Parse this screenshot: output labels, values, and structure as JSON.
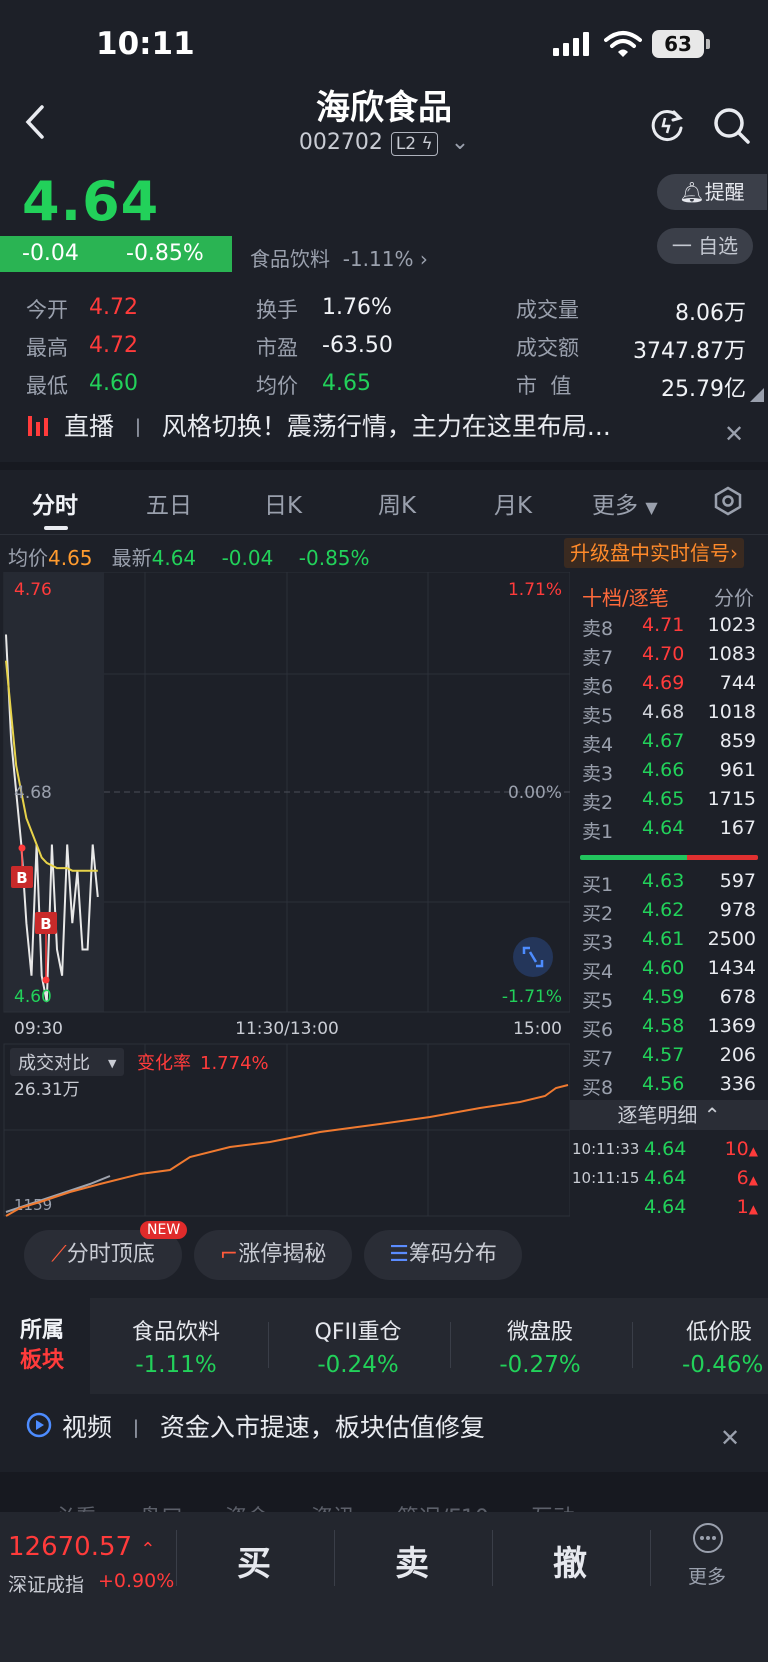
{
  "status": {
    "time": "10:11",
    "battery": "63"
  },
  "header": {
    "title": "海欣食品",
    "code": "002702",
    "badge": "L2"
  },
  "quote": {
    "price": "4.64",
    "change": "-0.04",
    "change_pct": "-0.85%",
    "sector": "食品饮料",
    "sector_pct": "-1.11%",
    "alert_label": "提醒",
    "watch_label": "一 自选"
  },
  "stats": {
    "open_label": "今开",
    "open": "4.72",
    "high_label": "最高",
    "high": "4.72",
    "low_label": "最低",
    "low": "4.60",
    "turnover_label": "换手",
    "turnover": "1.76%",
    "pe_label": "市盈",
    "pe": "-63.50",
    "avg_label": "均价",
    "avg": "4.65",
    "volume_label": "成交量",
    "volume": "8.06万",
    "amount_label": "成交额",
    "amount": "3747.87万",
    "mcap_label": "市  值",
    "mcap": "25.79亿"
  },
  "live": {
    "label": "直播",
    "sep": "丨",
    "text": "风格切换！震荡行情，主力在这里布局..."
  },
  "tabs": [
    "分时",
    "五日",
    "日K",
    "周K",
    "月K",
    "更多"
  ],
  "info": {
    "avg_label": "均价",
    "avg": "4.65",
    "last_label": "最新",
    "last": "4.64",
    "chg": "-0.04",
    "pct": "-0.85%",
    "upgrade": "升级盘中实时信号"
  },
  "chart_data": {
    "type": "line",
    "price_axis": {
      "top": "4.76",
      "mid": "4.68",
      "bottom": "4.60"
    },
    "pct_axis": {
      "top": "1.71%",
      "mid": "0.00%",
      "bottom": "-1.71%"
    },
    "time_labels": [
      "09:30",
      "11:30/13:00",
      "15:00"
    ],
    "ylim": [
      4.6,
      4.76
    ],
    "series": [
      {
        "values": [
          4.74,
          4.7,
          4.68,
          4.66,
          4.63,
          4.61,
          4.66,
          4.61,
          4.6,
          4.66,
          4.62,
          4.61,
          4.66,
          4.63,
          4.65,
          4.62,
          4.62,
          4.66,
          4.64
        ]
      },
      {
        "values": [
          4.73,
          4.71,
          4.69,
          4.68,
          4.67,
          4.665,
          4.66,
          4.655,
          4.653,
          4.652,
          4.651,
          4.651,
          4.651,
          4.65,
          4.65,
          4.65,
          4.65,
          4.65,
          4.65
        ]
      }
    ],
    "markers": [
      "B",
      "B"
    ],
    "volume": {
      "label": "成交对比",
      "rate_label": "变化率",
      "rate": "1.774%",
      "max": "26.31万",
      "min": "1159"
    }
  },
  "orderbook": {
    "title": "十档/逐笔",
    "mode": "分价",
    "asks": [
      {
        "label": "卖8",
        "price": "4.71",
        "vol": "1023",
        "color": "#ff3b3b"
      },
      {
        "label": "卖7",
        "price": "4.70",
        "vol": "1083",
        "color": "#ff3b3b"
      },
      {
        "label": "卖6",
        "price": "4.69",
        "vol": "744",
        "color": "#ff3b3b"
      },
      {
        "label": "卖5",
        "price": "4.68",
        "vol": "1018",
        "color": "#d0d3da"
      },
      {
        "label": "卖4",
        "price": "4.67",
        "vol": "859",
        "color": "#22d15a"
      },
      {
        "label": "卖3",
        "price": "4.66",
        "vol": "961",
        "color": "#22d15a"
      },
      {
        "label": "卖2",
        "price": "4.65",
        "vol": "1715",
        "color": "#22d15a"
      },
      {
        "label": "卖1",
        "price": "4.64",
        "vol": "167",
        "color": "#22d15a"
      }
    ],
    "bids": [
      {
        "label": "买1",
        "price": "4.63",
        "vol": "597",
        "color": "#22d15a"
      },
      {
        "label": "买2",
        "price": "4.62",
        "vol": "978",
        "color": "#22d15a"
      },
      {
        "label": "买3",
        "price": "4.61",
        "vol": "2500",
        "color": "#22d15a"
      },
      {
        "label": "买4",
        "price": "4.60",
        "vol": "1434",
        "color": "#22d15a"
      },
      {
        "label": "买5",
        "price": "4.59",
        "vol": "678",
        "color": "#22d15a"
      },
      {
        "label": "买6",
        "price": "4.58",
        "vol": "1369",
        "color": "#22d15a"
      },
      {
        "label": "买7",
        "price": "4.57",
        "vol": "206",
        "color": "#22d15a"
      },
      {
        "label": "买8",
        "price": "4.56",
        "vol": "336",
        "color": "#22d15a"
      }
    ],
    "detail_label": "逐笔明细",
    "ticks": [
      {
        "time": "10:11:33",
        "price": "4.64",
        "vol": "10"
      },
      {
        "time": "10:11:15",
        "price": "4.64",
        "vol": "6"
      },
      {
        "time": "",
        "price": "4.64",
        "vol": "1"
      }
    ]
  },
  "tools": {
    "t1": "分时顶底",
    "new": "NEW",
    "t2": "涨停揭秘",
    "t3": "筹码分布"
  },
  "sector_block": {
    "title1": "所属",
    "title2": "板块",
    "items": [
      {
        "name": "食品饮料",
        "pct": "-1.11%"
      },
      {
        "name": "QFII重仓",
        "pct": "-0.24%"
      },
      {
        "name": "微盘股",
        "pct": "-0.27%"
      },
      {
        "name": "低价股",
        "pct": "-0.46%"
      }
    ]
  },
  "video": {
    "label": "视频",
    "sep": "丨",
    "text": "资金入市提速，板块估值修复"
  },
  "hidden_tabs": " 必看      盘口      资金      资讯      简况/F10      互动",
  "bottom": {
    "index_value": "12670.57",
    "index_name": "深证成指",
    "index_chg": "+0.90%",
    "buy": "买",
    "sell": "卖",
    "cancel": "撤",
    "more": "更多"
  }
}
